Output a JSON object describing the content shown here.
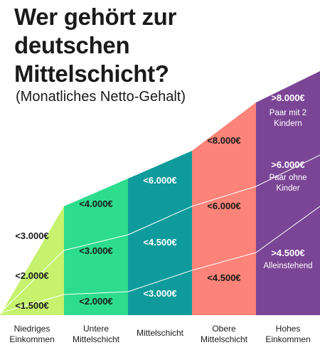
{
  "title_lines": [
    "Wer gehört zur",
    "deutschen",
    "Mittelschicht?"
  ],
  "subtitle": "(Monatliches Netto-Gehalt)",
  "chart_data": {
    "type": "area",
    "title": "Wer gehört zur deutschen Mittelschicht?",
    "subtitle": "(Monatliches Netto-Gehalt)",
    "categories": [
      {
        "label_lines": [
          "Niedriges",
          "Einkommen"
        ],
        "color": "#c6f26e"
      },
      {
        "label_lines": [
          "Untere",
          "Mittelschicht"
        ],
        "color": "#2ddc8c"
      },
      {
        "label_lines": [
          "Mittelschicht"
        ],
        "color": "#0f9b9b"
      },
      {
        "label_lines": [
          "Obere",
          "Mittelschicht"
        ],
        "color": "#fb8379"
      },
      {
        "label_lines": [
          "Hohes",
          "Einkommen"
        ],
        "color": "#7b4595"
      }
    ],
    "series": [
      {
        "name": "Alleinstehend",
        "labels": [
          "<1.500€",
          "<2.000€",
          "<3.000€",
          "<4.500€",
          ">4.500€"
        ],
        "values": [
          1500,
          2000,
          3000,
          4500,
          4500
        ]
      },
      {
        "name": "Paar ohne Kinder",
        "labels": [
          "<2.000€",
          "<3.000€",
          "<4.500€",
          "<6.000€",
          ">6.000€"
        ],
        "values": [
          2000,
          3000,
          4500,
          6000,
          6000
        ]
      },
      {
        "name": "Paar mit 2 Kindern",
        "labels": [
          "<3.000€",
          "<4.000€",
          "<6.000€",
          "<8.000€",
          ">8.000€"
        ],
        "values": [
          3000,
          4000,
          6000,
          8000,
          8000
        ]
      }
    ],
    "legend_notes": [
      {
        "series": "Alleinstehend",
        "lines": [
          "Alleinstehend"
        ]
      },
      {
        "series": "Paar ohne Kinder",
        "lines": [
          "Paar ohne",
          "Kinder"
        ]
      },
      {
        "series": "Paar mit 2 Kindern",
        "lines": [
          "Paar mit 2",
          "Kindern"
        ]
      }
    ],
    "colors": {
      "divider": "#ffffff",
      "text_dark": "#1a1a1a",
      "text_light": "#ffffff"
    }
  }
}
